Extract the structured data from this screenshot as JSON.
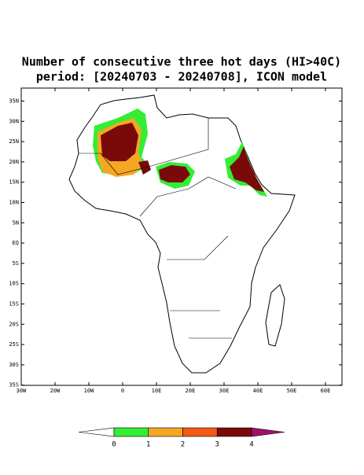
{
  "header": {
    "title": "Number of consecutive three hot days (HI>40C)",
    "subtitle": "period: [20240703 - 20240708], ICON model"
  },
  "map": {
    "lat_labels": [
      "35N",
      "30N",
      "25N",
      "20N",
      "15N",
      "10N",
      "5N",
      "EQ",
      "5S",
      "10S",
      "15S",
      "20S",
      "25S",
      "30S",
      "35S"
    ],
    "lon_labels": [
      "30W",
      "20W",
      "10W",
      "0",
      "10E",
      "20E",
      "30E",
      "40E",
      "50E",
      "60E"
    ]
  },
  "colorbar": {
    "labels": [
      "0",
      "1",
      "2",
      "3",
      "4"
    ],
    "colors": [
      "#ffffff",
      "#33ee33",
      "#f5a623",
      "#f05a14",
      "#7a0a0a",
      "#a0106a"
    ]
  }
}
